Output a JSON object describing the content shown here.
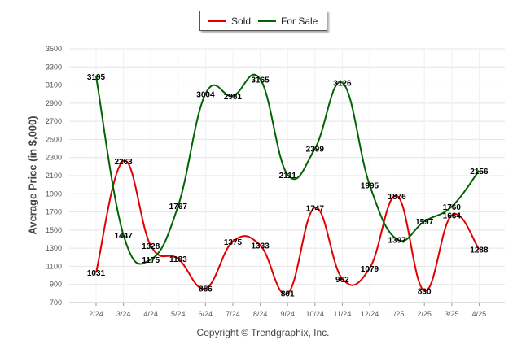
{
  "chart_data": {
    "type": "line",
    "categories": [
      "2/24",
      "3/24",
      "4/24",
      "5/24",
      "6/24",
      "7/24",
      "8/24",
      "9/24",
      "10/24",
      "11/24",
      "12/24",
      "1/25",
      "2/25",
      "3/25",
      "4/25"
    ],
    "series": [
      {
        "name": "Sold",
        "color": "#e00000",
        "values": [
          1031,
          2263,
          1328,
          1183,
          856,
          1375,
          1333,
          801,
          1747,
          962,
          1079,
          1876,
          830,
          1664,
          1288
        ]
      },
      {
        "name": "For Sale",
        "color": "#006400",
        "values": [
          3195,
          1447,
          1175,
          1767,
          3004,
          2981,
          3165,
          2111,
          2399,
          3126,
          1995,
          1397,
          1597,
          1760,
          2156
        ]
      }
    ],
    "ylabel": "Average Price (in $,000)",
    "ylim": [
      700,
      3500
    ],
    "yticks": [
      700,
      900,
      1100,
      1300,
      1500,
      1700,
      1900,
      2100,
      2300,
      2500,
      2700,
      2900,
      3100,
      3300,
      3500
    ],
    "grid": true,
    "legend_position": "top-center"
  },
  "footer": {
    "copyright": "Copyright © Trendgraphix, Inc."
  }
}
